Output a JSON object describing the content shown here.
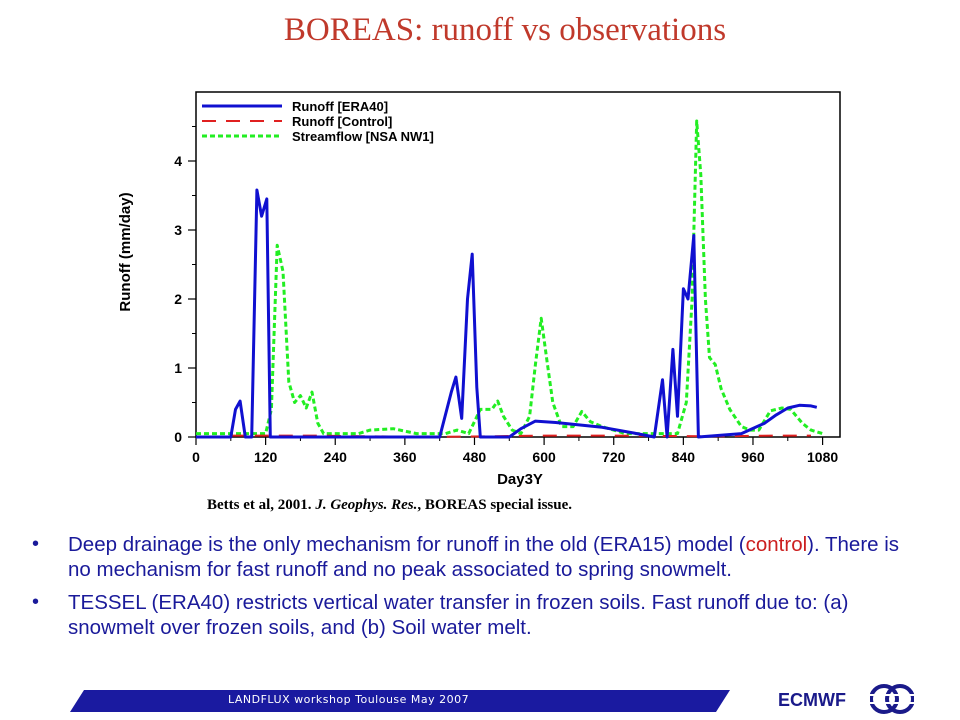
{
  "slide": {
    "title": "BOREAS: runoff vs observations",
    "citation": {
      "authors": "Betts et al, 2001.",
      "journal": "J. Geophys. Res.",
      "rest": ", BOREAS special issue."
    },
    "bullets": [
      {
        "part1": "Deep drainage is the only mechanism for runoff in the old (ERA15) model (",
        "highlight": "control",
        "part2": "). There is no mechanism for fast runoff and no peak associated to spring snowmelt."
      },
      {
        "part1": "TESSEL (ERA40) restricts vertical water transfer in frozen soils. Fast runoff due to: (a) snowmelt over frozen soils, and (b) Soil water melt.",
        "highlight": "",
        "part2": ""
      }
    ],
    "footer": "LANDFLUX workshop Toulouse May 2007",
    "org": "ECMWF",
    "colors": {
      "title": "#c0392b",
      "body_text": "#1a1a9a",
      "footer_bar": "#1a1aa0"
    }
  },
  "chart_data": {
    "type": "line",
    "xlabel": "Day3Y",
    "ylabel": "Runoff (mm/day)",
    "xlim": [
      0,
      1110
    ],
    "ylim": [
      0,
      5
    ],
    "xticks": [
      0,
      120,
      240,
      360,
      480,
      600,
      720,
      840,
      960,
      1080
    ],
    "yticks": [
      0,
      1,
      2,
      3,
      4
    ],
    "legend_position": "top-left",
    "series": [
      {
        "name": "Runoff [ERA40]",
        "color": "#1010d0",
        "style": "solid",
        "points": [
          [
            0,
            0
          ],
          [
            60,
            0
          ],
          [
            68,
            0.4
          ],
          [
            76,
            0.52
          ],
          [
            85,
            0
          ],
          [
            96,
            0
          ],
          [
            105,
            3.58
          ],
          [
            113,
            3.2
          ],
          [
            122,
            3.45
          ],
          [
            128,
            0
          ],
          [
            150,
            0
          ],
          [
            200,
            0
          ],
          [
            300,
            0
          ],
          [
            420,
            0
          ],
          [
            440,
            0.65
          ],
          [
            448,
            0.87
          ],
          [
            458,
            0.27
          ],
          [
            468,
            2.0
          ],
          [
            476,
            2.65
          ],
          [
            484,
            0.72
          ],
          [
            490,
            0
          ],
          [
            540,
            0
          ],
          [
            560,
            0.12
          ],
          [
            585,
            0.23
          ],
          [
            620,
            0.21
          ],
          [
            700,
            0.14
          ],
          [
            760,
            0.05
          ],
          [
            790,
            0
          ],
          [
            804,
            0.83
          ],
          [
            812,
            0
          ],
          [
            822,
            1.27
          ],
          [
            830,
            0.3
          ],
          [
            840,
            2.15
          ],
          [
            848,
            2.0
          ],
          [
            858,
            2.92
          ],
          [
            866,
            0
          ],
          [
            940,
            0.05
          ],
          [
            980,
            0.2
          ],
          [
            1000,
            0.32
          ],
          [
            1020,
            0.42
          ],
          [
            1040,
            0.46
          ],
          [
            1060,
            0.45
          ],
          [
            1070,
            0.43
          ]
        ]
      },
      {
        "name": "Runoff [Control]",
        "color": "#e02020",
        "style": "dashed",
        "points": [
          [
            60,
            0.02
          ],
          [
            200,
            0.02
          ],
          [
            300,
            0.01
          ],
          [
            400,
            0
          ],
          [
            600,
            0.02
          ],
          [
            700,
            0.02
          ],
          [
            900,
            0.01
          ],
          [
            1000,
            0.02
          ],
          [
            1060,
            0.02
          ]
        ]
      },
      {
        "name": "Streamflow [NSA NW1]",
        "color": "#22ee22",
        "style": "dotted",
        "points": [
          [
            0,
            0.05
          ],
          [
            120,
            0.05
          ],
          [
            130,
            0.4
          ],
          [
            140,
            2.78
          ],
          [
            150,
            2.4
          ],
          [
            160,
            0.8
          ],
          [
            170,
            0.5
          ],
          [
            180,
            0.6
          ],
          [
            190,
            0.42
          ],
          [
            200,
            0.65
          ],
          [
            210,
            0.2
          ],
          [
            220,
            0.05
          ],
          [
            280,
            0.05
          ],
          [
            300,
            0.1
          ],
          [
            340,
            0.12
          ],
          [
            380,
            0.05
          ],
          [
            430,
            0.05
          ],
          [
            450,
            0.1
          ],
          [
            470,
            0.05
          ],
          [
            490,
            0.4
          ],
          [
            510,
            0.4
          ],
          [
            520,
            0.52
          ],
          [
            530,
            0.3
          ],
          [
            545,
            0.1
          ],
          [
            560,
            0.05
          ],
          [
            575,
            0.3
          ],
          [
            585,
            1.05
          ],
          [
            595,
            1.72
          ],
          [
            605,
            1.1
          ],
          [
            615,
            0.5
          ],
          [
            630,
            0.15
          ],
          [
            650,
            0.15
          ],
          [
            665,
            0.37
          ],
          [
            680,
            0.22
          ],
          [
            700,
            0.15
          ],
          [
            740,
            0.05
          ],
          [
            800,
            0.05
          ],
          [
            830,
            0.05
          ],
          [
            845,
            0.5
          ],
          [
            855,
            2.0
          ],
          [
            863,
            4.58
          ],
          [
            870,
            3.8
          ],
          [
            878,
            2.0
          ],
          [
            885,
            1.15
          ],
          [
            895,
            1.05
          ],
          [
            905,
            0.7
          ],
          [
            920,
            0.4
          ],
          [
            940,
            0.15
          ],
          [
            955,
            0.1
          ],
          [
            970,
            0.1
          ],
          [
            990,
            0.38
          ],
          [
            1010,
            0.42
          ],
          [
            1025,
            0.4
          ],
          [
            1045,
            0.2
          ],
          [
            1060,
            0.1
          ],
          [
            1080,
            0.05
          ]
        ]
      }
    ]
  }
}
